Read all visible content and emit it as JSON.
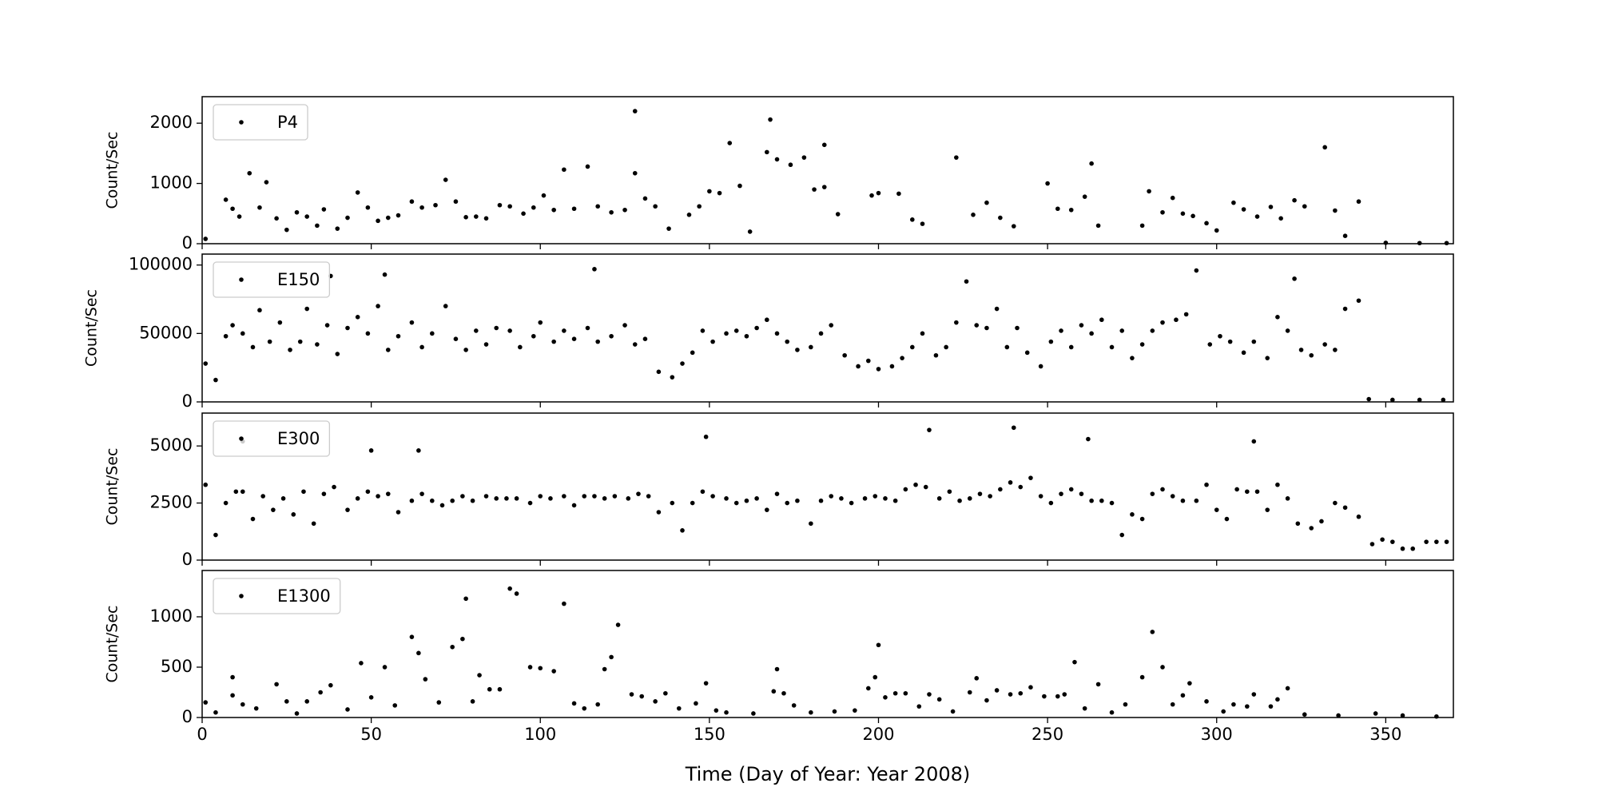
{
  "chart_data": [
    {
      "type": "scatter",
      "ylabel": "Count/Sec",
      "legend": "upper left",
      "xlim": [
        0,
        370
      ],
      "ylim": [
        0,
        2440
      ],
      "yticks": [
        0,
        1000,
        2000
      ],
      "series": [
        {
          "name": "P4",
          "color": "#000000",
          "x": [
            1,
            7,
            9,
            11,
            14,
            17,
            19,
            22,
            25,
            28,
            31,
            34,
            36,
            40,
            43,
            46,
            49,
            52,
            55,
            58,
            62,
            65,
            69,
            72,
            75,
            78,
            81,
            84,
            88,
            91,
            95,
            98,
            101,
            104,
            107,
            110,
            114,
            117,
            121,
            125,
            128,
            131,
            134,
            138,
            144,
            147,
            150,
            153,
            159,
            162,
            167,
            170,
            174,
            178,
            181,
            184,
            188,
            198,
            200,
            206,
            210,
            213,
            223,
            228,
            232,
            236,
            240,
            250,
            253,
            257,
            261,
            263,
            265,
            278,
            280,
            284,
            287,
            290,
            293,
            297,
            300,
            305,
            308,
            312,
            316,
            319,
            323,
            326,
            332,
            335,
            338,
            342,
            350,
            360,
            368,
            128,
            168,
            156,
            184
          ],
          "values": [
            80,
            730,
            580,
            450,
            1170,
            600,
            1020,
            420,
            230,
            520,
            450,
            300,
            570,
            250,
            430,
            850,
            600,
            380,
            430,
            470,
            700,
            600,
            640,
            1060,
            700,
            440,
            450,
            420,
            640,
            620,
            500,
            600,
            800,
            560,
            1230,
            580,
            1280,
            620,
            520,
            560,
            1170,
            750,
            620,
            250,
            480,
            620,
            870,
            840,
            960,
            200,
            1520,
            1400,
            1310,
            1430,
            900,
            940,
            490,
            800,
            840,
            830,
            400,
            330,
            1430,
            480,
            680,
            430,
            290,
            1000,
            580,
            560,
            780,
            1330,
            300,
            300,
            870,
            520,
            760,
            500,
            460,
            340,
            220,
            680,
            570,
            450,
            610,
            420,
            720,
            620,
            1600,
            550,
            130,
            700,
            15,
            10,
            10,
            2200,
            2060,
            1670,
            1640
          ]
        }
      ]
    },
    {
      "type": "scatter",
      "ylabel": "Count/Sec",
      "legend": "upper left",
      "xlim": [
        0,
        370
      ],
      "ylim": [
        0,
        108000
      ],
      "yticks": [
        0,
        50000,
        100000
      ],
      "series": [
        {
          "name": "E150",
          "color": "#000000",
          "x": [
            1,
            4,
            7,
            9,
            12,
            15,
            17,
            20,
            23,
            26,
            29,
            31,
            34,
            37,
            40,
            43,
            46,
            49,
            52,
            55,
            58,
            62,
            65,
            68,
            72,
            75,
            78,
            81,
            84,
            87,
            91,
            94,
            98,
            100,
            104,
            107,
            110,
            114,
            117,
            121,
            125,
            128,
            131,
            135,
            139,
            142,
            145,
            148,
            151,
            155,
            158,
            161,
            164,
            167,
            170,
            173,
            176,
            180,
            183,
            186,
            190,
            194,
            197,
            200,
            204,
            207,
            210,
            213,
            217,
            220,
            223,
            226,
            229,
            232,
            235,
            238,
            241,
            244,
            248,
            251,
            254,
            257,
            260,
            263,
            266,
            269,
            272,
            275,
            278,
            281,
            284,
            288,
            291,
            294,
            298,
            301,
            304,
            308,
            311,
            315,
            318,
            321,
            325,
            328,
            332,
            335,
            338,
            342,
            345,
            352,
            360,
            367,
            116,
            54,
            38,
            323
          ],
          "values": [
            28000,
            16000,
            48000,
            56000,
            50000,
            40000,
            67000,
            44000,
            58000,
            38000,
            44000,
            68000,
            42000,
            56000,
            35000,
            54000,
            62000,
            50000,
            70000,
            38000,
            48000,
            58000,
            40000,
            50000,
            70000,
            46000,
            38000,
            52000,
            42000,
            54000,
            52000,
            40000,
            48000,
            58000,
            44000,
            52000,
            46000,
            54000,
            44000,
            48000,
            56000,
            42000,
            46000,
            22000,
            18000,
            28000,
            36000,
            52000,
            44000,
            50000,
            52000,
            48000,
            54000,
            60000,
            50000,
            44000,
            38000,
            40000,
            50000,
            56000,
            34000,
            26000,
            30000,
            24000,
            26000,
            32000,
            40000,
            50000,
            34000,
            40000,
            58000,
            88000,
            56000,
            54000,
            68000,
            40000,
            54000,
            36000,
            26000,
            44000,
            52000,
            40000,
            56000,
            50000,
            60000,
            40000,
            52000,
            32000,
            42000,
            52000,
            58000,
            60000,
            64000,
            96000,
            42000,
            48000,
            44000,
            36000,
            44000,
            32000,
            62000,
            52000,
            38000,
            34000,
            42000,
            38000,
            68000,
            74000,
            2000,
            1500,
            1500,
            1500,
            97000,
            93000,
            92000,
            90000
          ]
        }
      ]
    },
    {
      "type": "scatter",
      "ylabel": "Count/Sec",
      "legend": "upper left",
      "xlim": [
        0,
        370
      ],
      "ylim": [
        0,
        6440
      ],
      "yticks": [
        0,
        2500,
        5000
      ],
      "series": [
        {
          "name": "E300",
          "color": "#000000",
          "x": [
            1,
            4,
            7,
            10,
            12,
            15,
            18,
            21,
            24,
            27,
            30,
            33,
            36,
            39,
            43,
            46,
            49,
            52,
            55,
            58,
            62,
            65,
            68,
            71,
            74,
            77,
            80,
            84,
            87,
            90,
            93,
            97,
            100,
            103,
            107,
            110,
            113,
            116,
            119,
            122,
            126,
            129,
            132,
            135,
            139,
            142,
            145,
            148,
            151,
            155,
            158,
            161,
            164,
            167,
            170,
            173,
            176,
            180,
            183,
            186,
            189,
            192,
            196,
            199,
            202,
            205,
            208,
            211,
            214,
            218,
            221,
            224,
            227,
            230,
            233,
            236,
            239,
            242,
            245,
            248,
            251,
            254,
            257,
            260,
            263,
            266,
            269,
            272,
            275,
            278,
            281,
            284,
            287,
            290,
            294,
            297,
            300,
            303,
            306,
            309,
            312,
            315,
            318,
            321,
            324,
            328,
            331,
            335,
            338,
            342,
            346,
            349,
            352,
            355,
            358,
            362,
            365,
            368,
            215,
            240,
            149,
            262,
            311,
            12,
            50,
            64
          ],
          "values": [
            3300,
            1100,
            2500,
            3000,
            3000,
            1800,
            2800,
            2200,
            2700,
            2000,
            3000,
            1600,
            2900,
            3200,
            2200,
            2700,
            3000,
            2800,
            2900,
            2100,
            2600,
            2900,
            2600,
            2400,
            2600,
            2800,
            2600,
            2800,
            2700,
            2700,
            2700,
            2500,
            2800,
            2700,
            2800,
            2400,
            2800,
            2800,
            2700,
            2800,
            2700,
            2900,
            2800,
            2100,
            2500,
            1300,
            2500,
            3000,
            2800,
            2700,
            2500,
            2600,
            2700,
            2200,
            2900,
            2500,
            2600,
            1600,
            2600,
            2800,
            2700,
            2500,
            2700,
            2800,
            2700,
            2600,
            3100,
            3300,
            3200,
            2700,
            3000,
            2600,
            2700,
            2900,
            2800,
            3100,
            3400,
            3200,
            3600,
            2800,
            2500,
            2900,
            3100,
            2900,
            2600,
            2600,
            2500,
            1100,
            2000,
            1800,
            2900,
            3100,
            2800,
            2600,
            2600,
            3300,
            2200,
            1800,
            3100,
            3000,
            3000,
            2200,
            3300,
            2700,
            1600,
            1400,
            1700,
            2500,
            2300,
            1900,
            700,
            900,
            800,
            500,
            500,
            800,
            800,
            800,
            5700,
            5800,
            5400,
            5300,
            5200,
            5200,
            4800,
            4800
          ]
        }
      ]
    },
    {
      "type": "scatter",
      "ylabel": "Count/Sec",
      "xlabel": "Time (Day of Year: Year 2008)",
      "legend": "upper left",
      "xlim": [
        0,
        370
      ],
      "ylim": [
        0,
        1460
      ],
      "yticks": [
        0,
        500,
        1000
      ],
      "xticks": [
        0,
        50,
        100,
        150,
        200,
        250,
        300,
        350
      ],
      "series": [
        {
          "name": "E1300",
          "color": "#000000",
          "x": [
            1,
            4,
            9,
            12,
            16,
            22,
            25,
            28,
            31,
            35,
            38,
            43,
            47,
            50,
            54,
            57,
            62,
            64,
            66,
            70,
            74,
            77,
            80,
            82,
            85,
            88,
            91,
            93,
            97,
            100,
            104,
            107,
            110,
            113,
            117,
            119,
            121,
            123,
            127,
            130,
            134,
            137,
            141,
            146,
            149,
            152,
            155,
            163,
            169,
            172,
            175,
            180,
            187,
            193,
            197,
            199,
            202,
            205,
            208,
            212,
            215,
            218,
            222,
            227,
            232,
            235,
            239,
            242,
            245,
            249,
            253,
            255,
            258,
            261,
            265,
            269,
            273,
            278,
            281,
            284,
            287,
            290,
            292,
            297,
            302,
            305,
            309,
            311,
            316,
            318,
            321,
            326,
            336,
            347,
            355,
            365,
            9,
            78,
            170,
            200,
            229
          ],
          "values": [
            150,
            50,
            220,
            130,
            90,
            330,
            160,
            40,
            160,
            250,
            320,
            80,
            540,
            200,
            500,
            120,
            800,
            640,
            380,
            150,
            700,
            780,
            160,
            420,
            280,
            280,
            1280,
            1230,
            500,
            490,
            460,
            1130,
            140,
            90,
            130,
            480,
            600,
            920,
            230,
            210,
            160,
            240,
            90,
            140,
            340,
            70,
            50,
            40,
            260,
            240,
            120,
            50,
            60,
            70,
            290,
            400,
            200,
            240,
            240,
            110,
            230,
            180,
            60,
            250,
            170,
            270,
            230,
            240,
            300,
            210,
            210,
            230,
            550,
            90,
            330,
            50,
            130,
            400,
            850,
            500,
            130,
            220,
            340,
            160,
            60,
            130,
            110,
            230,
            110,
            180,
            290,
            30,
            20,
            40,
            20,
            10,
            400,
            1180,
            480,
            720,
            390
          ]
        }
      ]
    }
  ]
}
